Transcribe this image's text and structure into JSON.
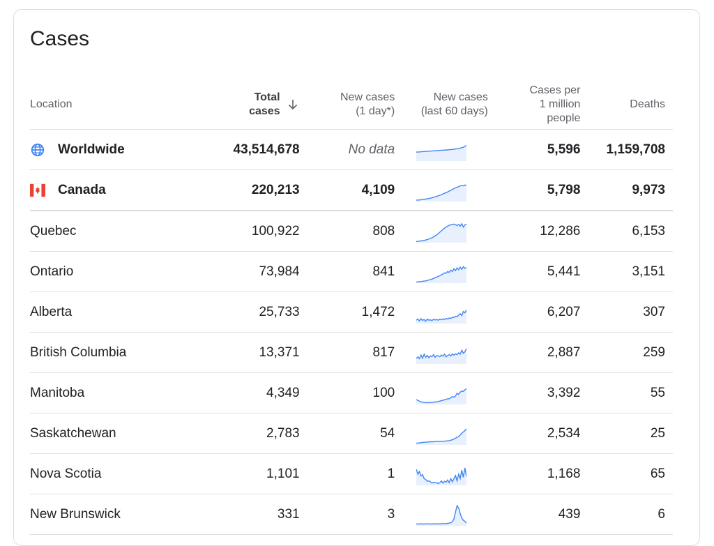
{
  "card": {
    "title": "Cases"
  },
  "table": {
    "headers": {
      "location": "Location",
      "total_line1": "Total",
      "total_line2": "cases",
      "new1_line1": "New cases",
      "new1_line2": "(1 day*)",
      "new60_line1": "New cases",
      "new60_line2": "(last 60 days)",
      "permil_line1": "Cases per",
      "permil_line2": "1 million",
      "permil_line3": "people",
      "deaths": "Deaths"
    },
    "rows": [
      {
        "location": "Worldwide",
        "icon": "globe-icon",
        "total": "43,514,678",
        "new": "No data",
        "per_million": "5,596",
        "deaths": "1,159,708",
        "trend": [
          40,
          41,
          41,
          42,
          42,
          43,
          43,
          44,
          44,
          45,
          45,
          46,
          46,
          47,
          47,
          48,
          48,
          49,
          49,
          50,
          50,
          51,
          52,
          52,
          53,
          54,
          55,
          56,
          58,
          60,
          62,
          66,
          70
        ]
      },
      {
        "location": "Canada",
        "icon": "canada-flag-icon",
        "total": "220,213",
        "new": "4,109",
        "per_million": "5,798",
        "deaths": "9,973",
        "trend": [
          6,
          7,
          7,
          8,
          9,
          10,
          11,
          12,
          14,
          15,
          17,
          19,
          21,
          23,
          26,
          28,
          31,
          34,
          37,
          40,
          43,
          47,
          50,
          54,
          58,
          61,
          64,
          67,
          70,
          72,
          70,
          74,
          72
        ]
      },
      {
        "location": "Quebec",
        "icon": "",
        "total": "100,922",
        "new": "808",
        "per_million": "12,286",
        "deaths": "6,153",
        "trend": [
          5,
          6,
          7,
          8,
          9,
          10,
          12,
          14,
          16,
          19,
          22,
          26,
          30,
          35,
          41,
          47,
          53,
          59,
          65,
          70,
          74,
          78,
          80,
          82,
          83,
          80,
          77,
          82,
          74,
          85,
          70,
          80,
          82
        ]
      },
      {
        "location": "Ontario",
        "icon": "",
        "total": "73,984",
        "new": "841",
        "per_million": "5,441",
        "deaths": "3,151",
        "trend": [
          5,
          6,
          6,
          7,
          8,
          9,
          10,
          12,
          14,
          16,
          18,
          21,
          24,
          27,
          30,
          33,
          37,
          41,
          46,
          44,
          52,
          48,
          58,
          52,
          64,
          56,
          68,
          60,
          72,
          62,
          74,
          66,
          70
        ]
      },
      {
        "location": "Alberta",
        "icon": "",
        "total": "25,733",
        "new": "1,472",
        "per_million": "6,207",
        "deaths": "307",
        "trend": [
          15,
          20,
          12,
          22,
          14,
          18,
          10,
          20,
          15,
          17,
          13,
          19,
          16,
          18,
          15,
          20,
          17,
          21,
          18,
          23,
          20,
          25,
          23,
          28,
          27,
          33,
          31,
          38,
          44,
          36,
          54,
          48,
          62
        ]
      },
      {
        "location": "British Columbia",
        "icon": "",
        "total": "13,371",
        "new": "817",
        "per_million": "2,887",
        "deaths": "259",
        "trend": [
          25,
          32,
          24,
          40,
          26,
          44,
          30,
          38,
          28,
          36,
          33,
          42,
          30,
          38,
          36,
          33,
          40,
          35,
          44,
          32,
          38,
          42,
          36,
          45,
          40,
          46,
          42,
          50,
          44,
          62,
          48,
          55,
          70
        ]
      },
      {
        "location": "Manitoba",
        "icon": "",
        "total": "4,349",
        "new": "100",
        "per_million": "3,392",
        "deaths": "55",
        "trend": [
          22,
          18,
          15,
          12,
          10,
          9,
          8,
          8,
          8,
          9,
          9,
          10,
          11,
          12,
          13,
          15,
          17,
          19,
          21,
          23,
          25,
          26,
          30,
          36,
          32,
          38,
          50,
          45,
          55,
          60,
          58,
          66,
          70
        ]
      },
      {
        "location": "Saskatchewan",
        "icon": "",
        "total": "2,783",
        "new": "54",
        "per_million": "2,534",
        "deaths": "25",
        "trend": [
          8,
          8,
          9,
          10,
          11,
          12,
          12,
          13,
          13,
          14,
          14,
          14,
          15,
          15,
          15,
          16,
          16,
          16,
          17,
          17,
          18,
          19,
          21,
          23,
          26,
          30,
          34,
          38,
          44,
          52,
          58,
          64,
          72
        ]
      },
      {
        "location": "Nova Scotia",
        "icon": "",
        "total": "1,101",
        "new": "1",
        "per_million": "1,168",
        "deaths": "65",
        "trend": [
          72,
          50,
          62,
          42,
          48,
          30,
          26,
          18,
          20,
          16,
          10,
          14,
          12,
          12,
          8,
          12,
          20,
          10,
          18,
          14,
          24,
          12,
          30,
          16,
          30,
          44,
          20,
          50,
          30,
          68,
          36,
          78,
          40
        ]
      },
      {
        "location": "New Brunswick",
        "icon": "",
        "total": "331",
        "new": "3",
        "per_million": "439",
        "deaths": "6",
        "trend": [
          8,
          8,
          8,
          9,
          8,
          8,
          9,
          8,
          9,
          8,
          8,
          9,
          8,
          9,
          9,
          8,
          9,
          10,
          9,
          10,
          11,
          12,
          14,
          18,
          30,
          62,
          90,
          80,
          55,
          35,
          25,
          20,
          12
        ]
      }
    ]
  },
  "colors": {
    "spark_line": "#4285f4",
    "spark_fill": "#e8f0fe",
    "flag_red": "#ea4335",
    "globe": "#4285f4"
  }
}
